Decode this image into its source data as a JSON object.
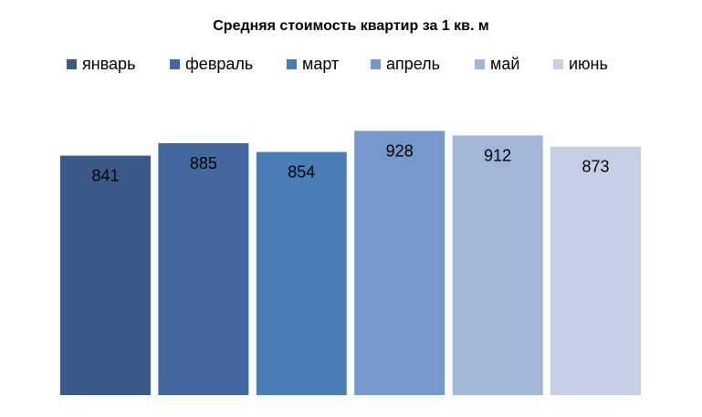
{
  "chart_data": {
    "type": "bar",
    "title": "Средняя стоимость квартир за 1 кв. м",
    "categories": [
      "январь",
      "февраль",
      "март",
      "апрель",
      "май",
      "июнь"
    ],
    "values": [
      841,
      885,
      854,
      928,
      912,
      873
    ],
    "colors": [
      "#3B5A87",
      "#41699E",
      "#4A7DB8",
      "#7597C9",
      "#A2B5D6",
      "#C5D0E4"
    ],
    "legend_position": "top",
    "grid": false,
    "data_labels": true
  }
}
